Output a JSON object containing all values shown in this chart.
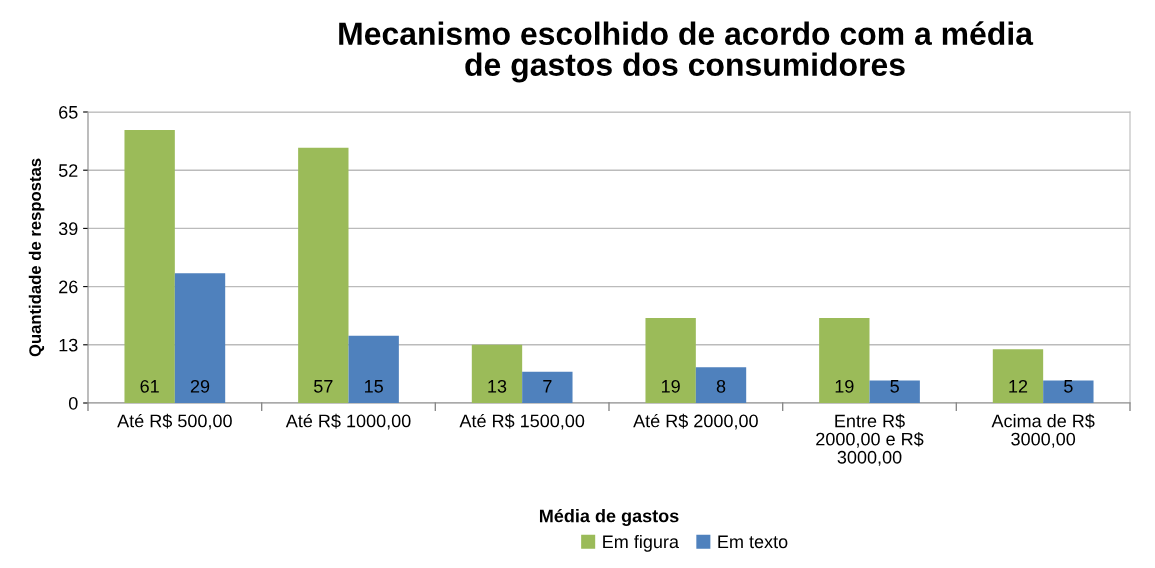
{
  "chart_data": {
    "type": "bar",
    "title": "Mecanismo escolhido de acordo com a média\nde gastos dos consumidores",
    "xlabel": "Média de gastos",
    "ylabel": "Quantidade de respostas",
    "categories": [
      "Até R$ 500,00",
      "Até R$ 1000,00",
      "Até R$ 1500,00",
      "Até R$ 2000,00",
      "Entre R$\n2000,00 e R$\n3000,00",
      "Acima de R$\n3000,00"
    ],
    "series": [
      {
        "name": "Em figura",
        "color": "#9bbb59",
        "values": [
          61,
          57,
          13,
          19,
          19,
          12
        ]
      },
      {
        "name": "Em texto",
        "color": "#4f81bd",
        "values": [
          29,
          15,
          7,
          8,
          5,
          5
        ]
      }
    ],
    "ylim": [
      0,
      65
    ],
    "yticks": [
      0,
      13,
      26,
      39,
      52,
      65
    ],
    "grid": "y",
    "legend": "bottom",
    "data_labels": true
  }
}
